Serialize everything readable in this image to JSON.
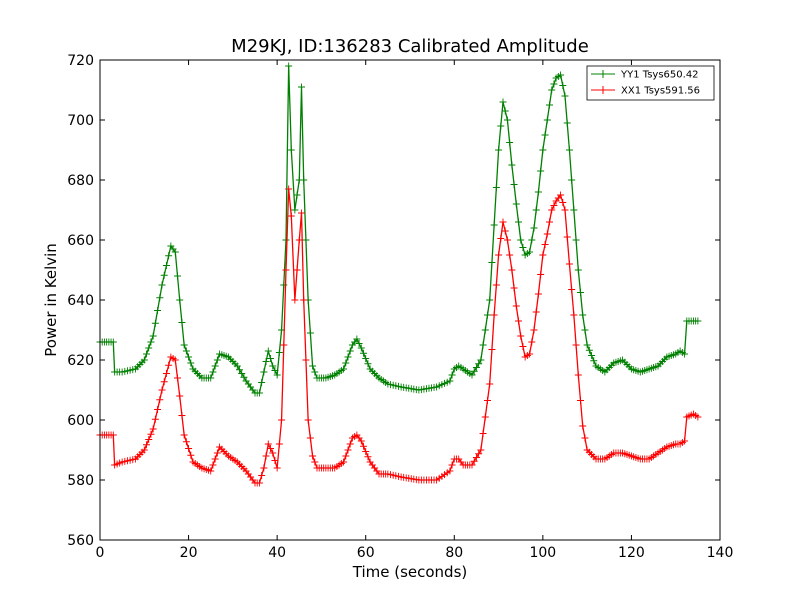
{
  "chart_data": {
    "type": "line",
    "title": "M29KJ, ID:136283 Calibrated Amplitude",
    "xlabel": "Time (seconds)",
    "ylabel": "Power in Kelvin",
    "xlim": [
      0,
      140
    ],
    "ylim": [
      560,
      720
    ],
    "xticks": [
      0,
      20,
      40,
      60,
      80,
      100,
      120,
      140
    ],
    "yticks": [
      560,
      580,
      600,
      620,
      640,
      660,
      680,
      700,
      720
    ],
    "grid": false,
    "legend_position": "top-right",
    "marker": "+",
    "series": [
      {
        "name": "YY1 Tsys650.42",
        "color": "#008000",
        "points": [
          [
            0,
            626
          ],
          [
            1,
            626
          ],
          [
            2,
            626
          ],
          [
            3,
            626
          ],
          [
            3.3,
            616
          ],
          [
            5,
            616
          ],
          [
            8,
            617
          ],
          [
            10,
            620
          ],
          [
            12,
            628
          ],
          [
            14,
            645
          ],
          [
            16,
            658
          ],
          [
            17,
            656
          ],
          [
            18,
            640
          ],
          [
            19,
            625
          ],
          [
            21,
            617
          ],
          [
            23,
            614
          ],
          [
            25,
            614
          ],
          [
            27,
            622
          ],
          [
            29,
            621
          ],
          [
            31,
            618
          ],
          [
            33,
            613
          ],
          [
            35,
            609
          ],
          [
            36,
            609
          ],
          [
            37,
            616
          ],
          [
            38,
            623
          ],
          [
            39,
            618
          ],
          [
            40,
            615
          ],
          [
            41,
            630
          ],
          [
            42,
            660
          ],
          [
            42.6,
            718
          ],
          [
            43.2,
            690
          ],
          [
            44,
            670
          ],
          [
            45,
            680
          ],
          [
            45.5,
            711
          ],
          [
            46,
            680
          ],
          [
            47,
            640
          ],
          [
            48,
            618
          ],
          [
            49,
            614
          ],
          [
            51,
            614
          ],
          [
            53,
            615
          ],
          [
            55,
            617
          ],
          [
            57,
            625
          ],
          [
            58,
            627
          ],
          [
            59,
            624
          ],
          [
            61,
            617
          ],
          [
            63,
            614
          ],
          [
            65,
            612
          ],
          [
            68,
            611
          ],
          [
            72,
            610
          ],
          [
            76,
            611
          ],
          [
            79,
            613
          ],
          [
            80,
            617
          ],
          [
            81,
            618
          ],
          [
            82,
            617
          ],
          [
            84,
            615
          ],
          [
            86,
            620
          ],
          [
            88,
            640
          ],
          [
            89,
            665
          ],
          [
            90,
            690
          ],
          [
            91,
            706
          ],
          [
            92,
            700
          ],
          [
            93,
            685
          ],
          [
            94,
            672
          ],
          [
            95,
            660
          ],
          [
            96,
            655
          ],
          [
            97,
            656
          ],
          [
            98,
            664
          ],
          [
            99,
            676
          ],
          [
            100,
            690
          ],
          [
            101,
            700
          ],
          [
            102,
            710
          ],
          [
            103,
            714
          ],
          [
            104,
            715
          ],
          [
            105,
            708
          ],
          [
            106,
            690
          ],
          [
            107,
            670
          ],
          [
            108,
            650
          ],
          [
            109,
            635
          ],
          [
            110,
            625
          ],
          [
            112,
            618
          ],
          [
            114,
            616
          ],
          [
            116,
            619
          ],
          [
            118,
            620
          ],
          [
            120,
            617
          ],
          [
            122,
            616
          ],
          [
            124,
            617
          ],
          [
            126,
            618
          ],
          [
            128,
            621
          ],
          [
            130,
            622
          ],
          [
            131,
            623
          ],
          [
            132,
            622
          ],
          [
            132.5,
            633
          ],
          [
            134,
            633
          ],
          [
            135,
            633
          ]
        ]
      },
      {
        "name": "XX1 Tsys591.56",
        "color": "#ff0000",
        "points": [
          [
            0,
            595
          ],
          [
            1,
            595
          ],
          [
            2,
            595
          ],
          [
            3,
            595
          ],
          [
            3.3,
            585
          ],
          [
            5,
            586
          ],
          [
            8,
            587
          ],
          [
            10,
            590
          ],
          [
            12,
            597
          ],
          [
            14,
            610
          ],
          [
            16,
            621
          ],
          [
            17,
            620
          ],
          [
            18,
            608
          ],
          [
            19,
            595
          ],
          [
            21,
            586
          ],
          [
            23,
            584
          ],
          [
            25,
            583
          ],
          [
            27,
            591
          ],
          [
            29,
            588
          ],
          [
            31,
            586
          ],
          [
            33,
            583
          ],
          [
            35,
            579
          ],
          [
            36,
            579
          ],
          [
            37,
            584
          ],
          [
            38,
            592
          ],
          [
            39,
            589
          ],
          [
            40,
            584
          ],
          [
            41,
            600
          ],
          [
            42,
            650
          ],
          [
            42.6,
            677
          ],
          [
            43.2,
            668
          ],
          [
            44,
            640
          ],
          [
            45,
            660
          ],
          [
            45.5,
            669
          ],
          [
            46,
            640
          ],
          [
            47,
            600
          ],
          [
            48,
            588
          ],
          [
            49,
            584
          ],
          [
            51,
            584
          ],
          [
            53,
            584
          ],
          [
            55,
            586
          ],
          [
            57,
            594
          ],
          [
            58,
            595
          ],
          [
            59,
            593
          ],
          [
            61,
            586
          ],
          [
            63,
            582
          ],
          [
            65,
            582
          ],
          [
            68,
            581
          ],
          [
            72,
            580
          ],
          [
            76,
            580
          ],
          [
            79,
            583
          ],
          [
            80,
            587
          ],
          [
            81,
            587
          ],
          [
            82,
            585
          ],
          [
            84,
            585
          ],
          [
            86,
            590
          ],
          [
            88,
            612
          ],
          [
            89,
            635
          ],
          [
            90,
            655
          ],
          [
            91,
            666
          ],
          [
            92,
            660
          ],
          [
            93,
            650
          ],
          [
            94,
            638
          ],
          [
            95,
            628
          ],
          [
            96,
            621
          ],
          [
            97,
            622
          ],
          [
            98,
            630
          ],
          [
            99,
            642
          ],
          [
            100,
            655
          ],
          [
            101,
            662
          ],
          [
            102,
            670
          ],
          [
            103,
            673
          ],
          [
            104,
            675
          ],
          [
            105,
            670
          ],
          [
            106,
            652
          ],
          [
            107,
            635
          ],
          [
            108,
            615
          ],
          [
            109,
            598
          ],
          [
            110,
            590
          ],
          [
            112,
            587
          ],
          [
            114,
            587
          ],
          [
            116,
            589
          ],
          [
            118,
            589
          ],
          [
            120,
            588
          ],
          [
            122,
            587
          ],
          [
            124,
            587
          ],
          [
            126,
            589
          ],
          [
            128,
            591
          ],
          [
            130,
            592
          ],
          [
            131,
            592
          ],
          [
            132,
            593
          ],
          [
            132.5,
            601
          ],
          [
            134,
            602
          ],
          [
            135,
            601
          ]
        ]
      }
    ]
  }
}
